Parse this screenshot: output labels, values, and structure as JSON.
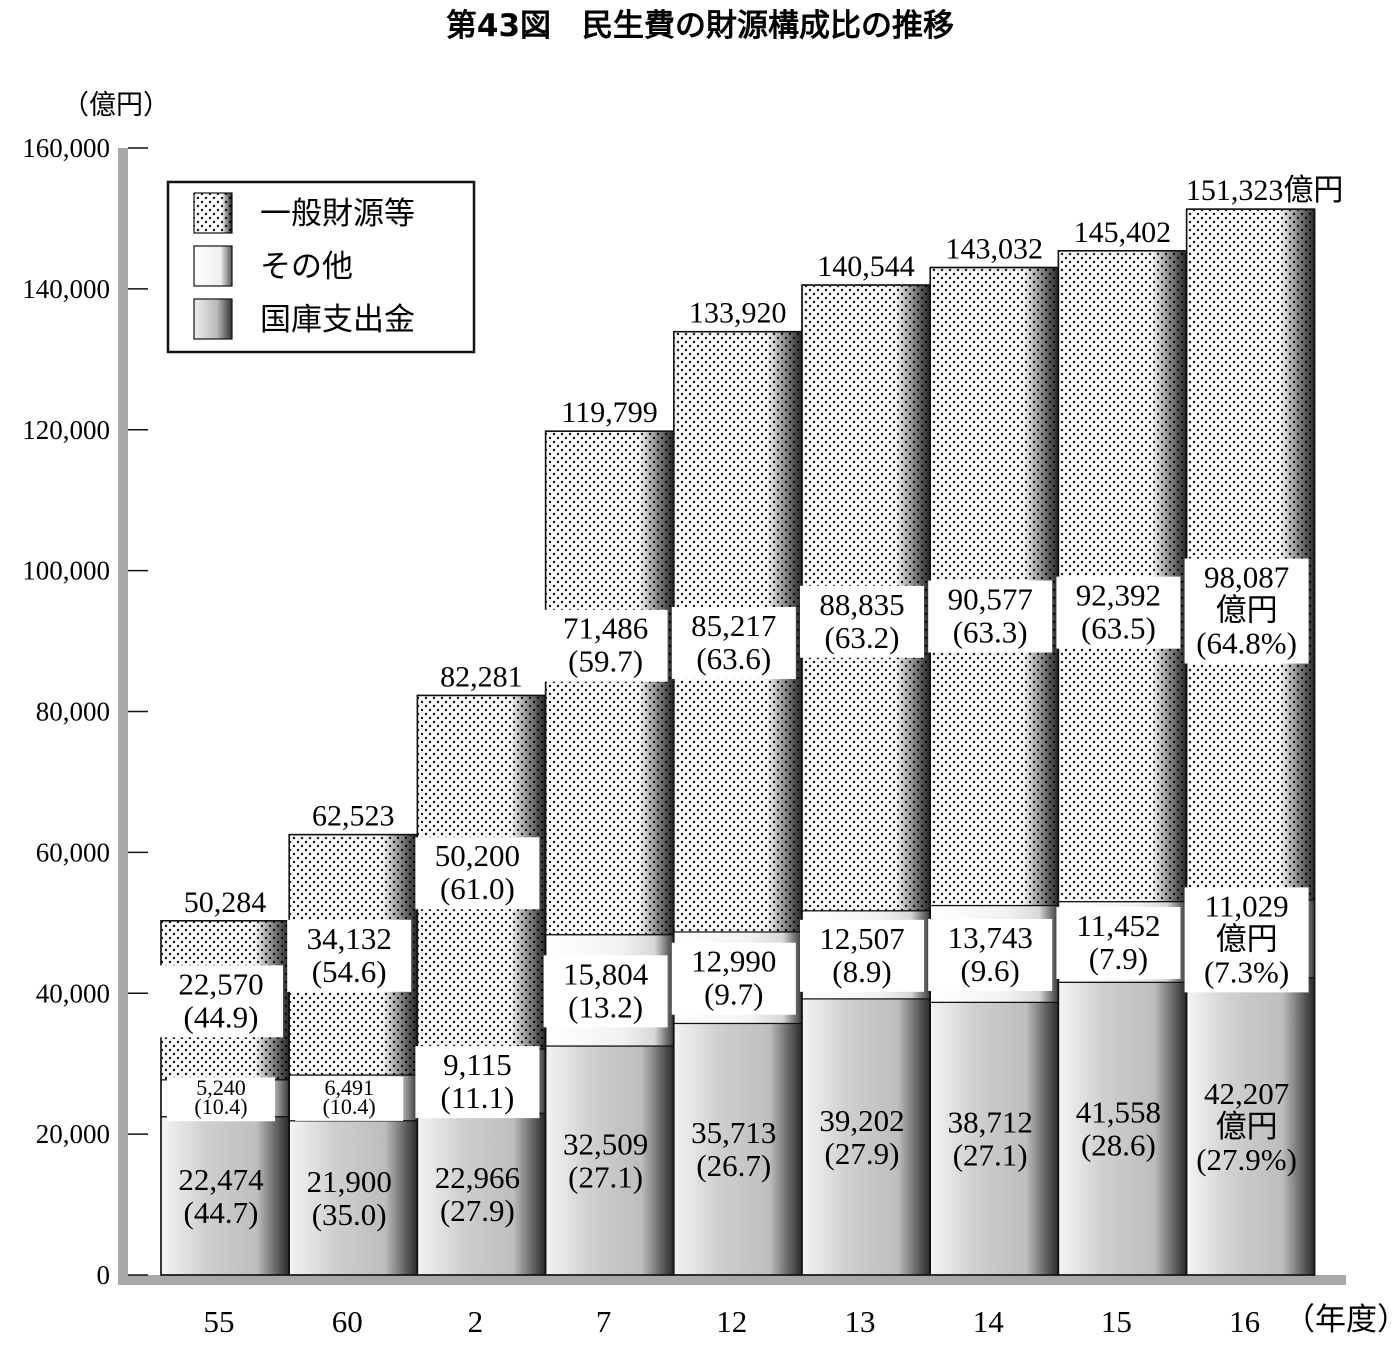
{
  "title": "第43図　民生費の財源構成比の推移",
  "chart_data": {
    "type": "bar",
    "stacked": true,
    "y_unit_label": "（億円）",
    "x_unit_label": "（年度）",
    "ylim": [
      0,
      160000
    ],
    "y_ticks": [
      "0",
      "20,000",
      "40,000",
      "60,000",
      "80,000",
      "100,000",
      "120,000",
      "140,000",
      "160,000"
    ],
    "y_tick_values": [
      0,
      20000,
      40000,
      60000,
      80000,
      100000,
      120000,
      140000,
      160000
    ],
    "categories": [
      "55",
      "60",
      "2",
      "7",
      "12",
      "13",
      "14",
      "15",
      "16"
    ],
    "totals": [
      50284,
      62523,
      82281,
      119799,
      133920,
      140544,
      143032,
      145402,
      151323
    ],
    "total_labels": [
      "50,284",
      "62,523",
      "82,281",
      "119,799",
      "133,920",
      "140,544",
      "143,032",
      "145,402",
      "151,323億円"
    ],
    "legend_position": "top-left",
    "legend": [
      "一般財源等",
      "その他",
      "国庫支出金"
    ],
    "series": [
      {
        "name": "国庫支出金",
        "fill": "gray-gradient",
        "values": [
          22474,
          21900,
          22966,
          32509,
          35713,
          39202,
          38712,
          41558,
          42207
        ],
        "labels": [
          [
            "22,474",
            "(44.7)"
          ],
          [
            "21,900",
            "(35.0)"
          ],
          [
            "22,966",
            "(27.9)"
          ],
          [
            "32,509",
            "(27.1)"
          ],
          [
            "35,713",
            "(26.7)"
          ],
          [
            "39,202",
            "(27.9)"
          ],
          [
            "38,712",
            "(27.1)"
          ],
          [
            "41,558",
            "(28.6)"
          ],
          [
            "42,207",
            "億円",
            "(27.9%)"
          ]
        ]
      },
      {
        "name": "その他",
        "fill": "white-gradient",
        "values": [
          5240,
          6491,
          9115,
          15804,
          12990,
          12507,
          13743,
          11452,
          11029
        ],
        "labels": [
          [
            "5,240",
            "(10.4)"
          ],
          [
            "6,491",
            "(10.4)"
          ],
          [
            "9,115",
            "(11.1)"
          ],
          [
            "15,804",
            "(13.2)"
          ],
          [
            "12,990",
            "(9.7)"
          ],
          [
            "12,507",
            "(8.9)"
          ],
          [
            "13,743",
            "(9.6)"
          ],
          [
            "11,452",
            "(7.9)"
          ],
          [
            "11,029",
            "億円",
            "(7.3%)"
          ]
        ]
      },
      {
        "name": "一般財源等",
        "fill": "dotted",
        "values": [
          22570,
          34132,
          50200,
          71486,
          85217,
          88835,
          90577,
          92392,
          98087
        ],
        "labels": [
          [
            "22,570",
            "(44.9)"
          ],
          [
            "34,132",
            "(54.6)"
          ],
          [
            "50,200",
            "(61.0)"
          ],
          [
            "71,486",
            "(59.7)"
          ],
          [
            "85,217",
            "(63.6)"
          ],
          [
            "88,835",
            "(63.2)"
          ],
          [
            "90,577",
            "(63.3)"
          ],
          [
            "92,392",
            "(63.5)"
          ],
          [
            "98,087",
            "億円",
            "(64.8%)"
          ]
        ]
      }
    ]
  }
}
